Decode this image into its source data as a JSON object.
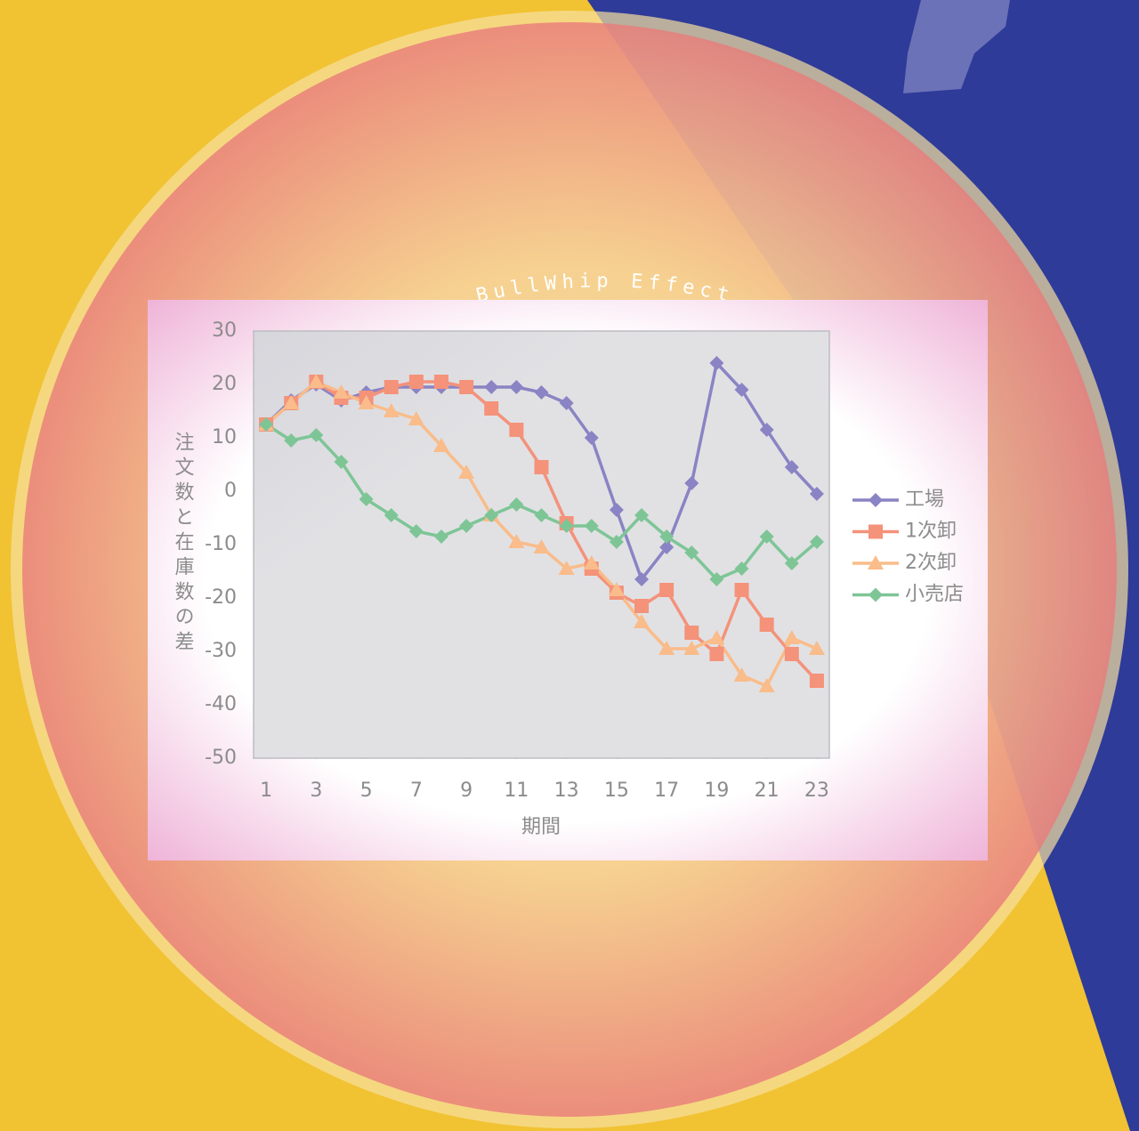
{
  "chart_data": {
    "type": "line",
    "title": "BullWhip Effect",
    "x_label": "期間",
    "y_label": "注文数と在庫数の差",
    "x": [
      1,
      2,
      3,
      4,
      5,
      6,
      7,
      8,
      9,
      10,
      11,
      12,
      13,
      14,
      15,
      16,
      17,
      18,
      19,
      20,
      21,
      22,
      23
    ],
    "xlim": [
      0.5,
      23.5
    ],
    "xticks": [
      1,
      3,
      5,
      7,
      9,
      11,
      13,
      15,
      17,
      19,
      21,
      23
    ],
    "ylim": [
      -50,
      30
    ],
    "yticks": [
      30,
      20,
      10,
      0,
      -10,
      -20,
      -30,
      -40,
      -50
    ],
    "legend": "right",
    "series": [
      {
        "name": "工場",
        "color": "#8a84c4",
        "marker": "diamond",
        "values": [
          12.5,
          17,
          20,
          17,
          18.5,
          19.5,
          19.5,
          19.5,
          19.5,
          19.5,
          19.5,
          18.5,
          16.5,
          10,
          -3.5,
          -16.5,
          -10.5,
          1.5,
          24,
          19,
          11.5,
          4.5,
          -0.5
        ]
      },
      {
        "name": "1次卸",
        "color": "#f4927a",
        "marker": "square",
        "values": [
          12.5,
          16.5,
          20.5,
          17.5,
          17.5,
          19.5,
          20.5,
          20.5,
          19.5,
          15.5,
          11.5,
          4.5,
          -6,
          -14.5,
          -19,
          -21.5,
          -18.5,
          -26.5,
          -30.5,
          -18.5,
          -25,
          -30.5,
          -35.5
        ]
      },
      {
        "name": "2次卸",
        "color": "#f9bc8a",
        "marker": "triangle",
        "values": [
          12.5,
          16.5,
          20.5,
          18.5,
          16.5,
          15,
          13.5,
          8.5,
          3.5,
          -4.5,
          -9.5,
          -10.5,
          -14.5,
          -13.5,
          -18.5,
          -24.5,
          -29.5,
          -29.5,
          -27.5,
          -34.5,
          -36.5,
          -27.5,
          -29.5
        ]
      },
      {
        "name": "小売店",
        "color": "#7ec596",
        "marker": "diamond",
        "values": [
          12.5,
          9.5,
          10.5,
          5.5,
          -1.5,
          -4.5,
          -7.5,
          -8.5,
          -6.5,
          -4.5,
          -2.5,
          -4.5,
          -6.5,
          -6.5,
          -9.5,
          -4.5,
          -8.5,
          -11.5,
          -16.5,
          -14.5,
          -8.5,
          -13.5,
          -9.5
        ]
      }
    ]
  }
}
